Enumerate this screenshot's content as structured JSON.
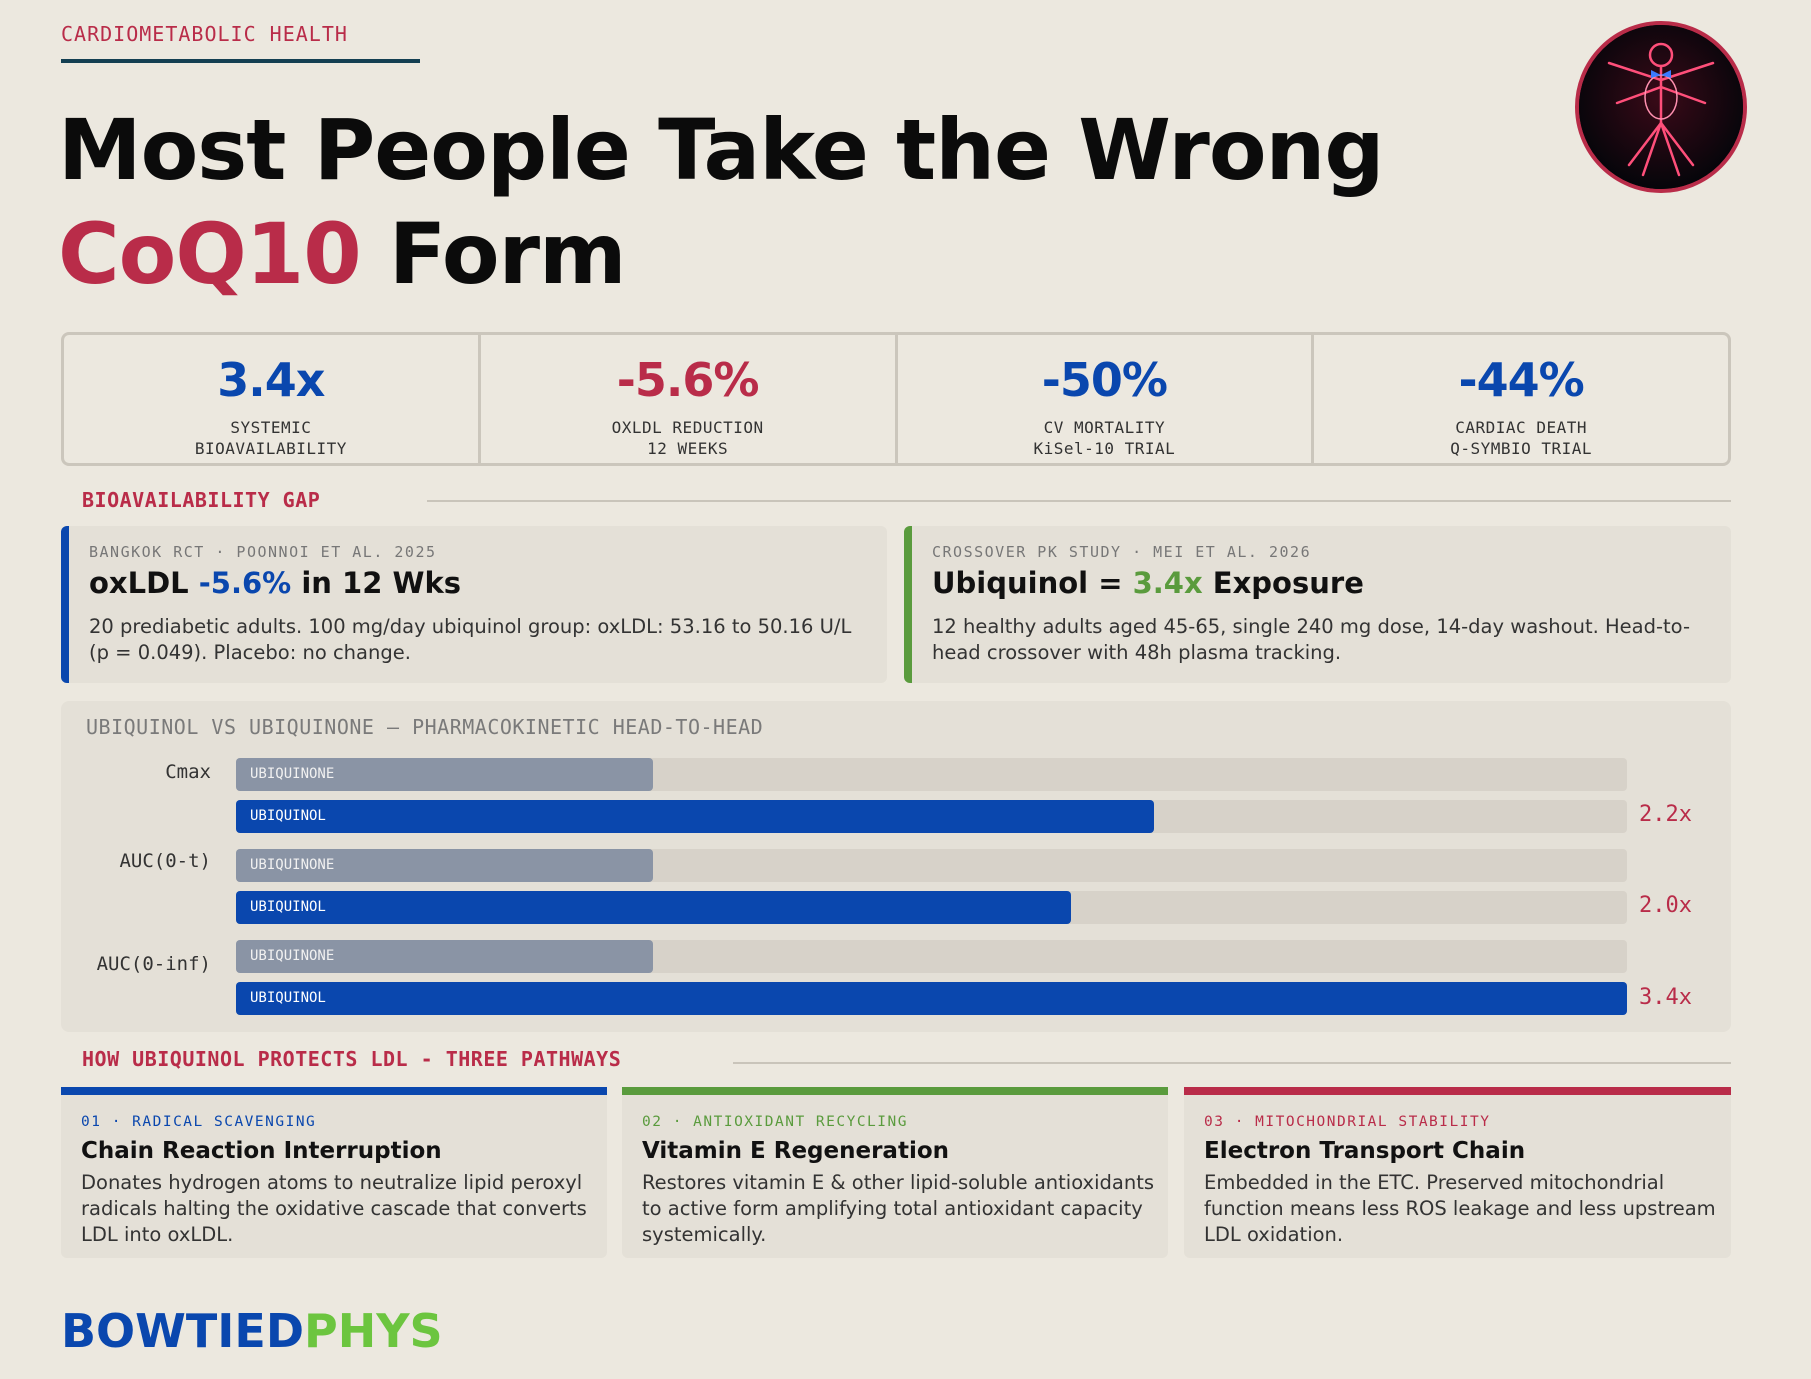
{
  "header": {
    "eyebrow": "CARDIOMETABOLIC HEALTH",
    "title_line1": "Most People Take the Wrong",
    "title_accent": "CoQ10",
    "title_rest": " Form",
    "avatar_icon": "vitruvian-figure-icon"
  },
  "stats": [
    {
      "value": "3.4x",
      "label1": "SYSTEMIC",
      "label2": "BIOAVAILABILITY",
      "color": "#0a47ae"
    },
    {
      "value": "-5.6%",
      "label1": "OXLDL REDUCTION",
      "label2": "12 WEEKS",
      "color": "#b92c49"
    },
    {
      "value": "-50%",
      "label1": "CV MORTALITY",
      "label2": "KiSel-10 TRIAL",
      "color": "#0a47ae"
    },
    {
      "value": "-44%",
      "label1": "CARDIAC DEATH",
      "label2": "Q-SYMBIO TRIAL",
      "color": "#0a47ae"
    }
  ],
  "bioavailability": {
    "section_title": "BIOAVAILABILITY GAP",
    "cards": [
      {
        "kicker": "BANGKOK RCT · POONNOI ET AL. 2025",
        "title_pre": "oxLDL ",
        "title_highlight": "-5.6%",
        "title_post": " in 12 Wks",
        "body": "20 prediabetic adults. 100 mg/day ubiquinol group: oxLDL: 53.16 to 50.16 U/L (p = 0.049). Placebo: no change.",
        "accent": "#0a47ae"
      },
      {
        "kicker": "CROSSOVER PK STUDY · MEI ET AL. 2026",
        "title_pre": "Ubiquinol = ",
        "title_highlight": "3.4x",
        "title_post": " Exposure",
        "body": "12 healthy adults aged 45-65, single 240 mg dose, 14-day washout. Head-to-head crossover with 48h plasma tracking.",
        "accent": "#5a9b3d"
      }
    ]
  },
  "pk_chart": {
    "title": "UBIQUINOL VS UBIQUINONE — PHARMACOKINETIC HEAD-TO-HEAD",
    "groups": [
      {
        "label": "Cmax",
        "ubiquinone_label": "UBIQUINONE",
        "ubiquinol_label": "UBIQUINOL",
        "ubiquinone": 0.3,
        "ubiquinol": 0.66,
        "multiplier": "2.2x"
      },
      {
        "label": "AUC(0-t)",
        "ubiquinone_label": "UBIQUINONE",
        "ubiquinol_label": "UBIQUINOL",
        "ubiquinone": 0.3,
        "ubiquinol": 0.6,
        "multiplier": "2.0x"
      },
      {
        "label": "AUC(0-inf)",
        "ubiquinone_label": "UBIQUINONE",
        "ubiquinol_label": "UBIQUINOL",
        "ubiquinone": 0.3,
        "ubiquinol": 1.0,
        "multiplier": "3.4x"
      }
    ]
  },
  "pathways": {
    "section_title": "HOW UBIQUINOL PROTECTS LDL - THREE PATHWAYS",
    "items": [
      {
        "kicker": "01 · RADICAL SCAVENGING",
        "title": "Chain Reaction Interruption",
        "body": "Donates hydrogen atoms to neutralize lipid peroxyl radicals halting the oxidative cascade that converts LDL into oxLDL.",
        "color": "#0a47ae"
      },
      {
        "kicker": "02 · ANTIOXIDANT RECYCLING",
        "title": "Vitamin E Regeneration",
        "body": "Restores vitamin E & other lipid-soluble antioxidants to active form amplifying total antioxidant capacity systemically.",
        "color": "#5a9b3d"
      },
      {
        "kicker": "03 · MITOCHONDRIAL STABILITY",
        "title": "Electron Transport Chain",
        "body": "Embedded in the ETC. Preserved mitochondrial function means less ROS leakage and less upstream LDL oxidation.",
        "color": "#b92c49"
      }
    ]
  },
  "footer": {
    "logo_part1": "BOWTIED",
    "logo_part2": "PHYS"
  }
}
